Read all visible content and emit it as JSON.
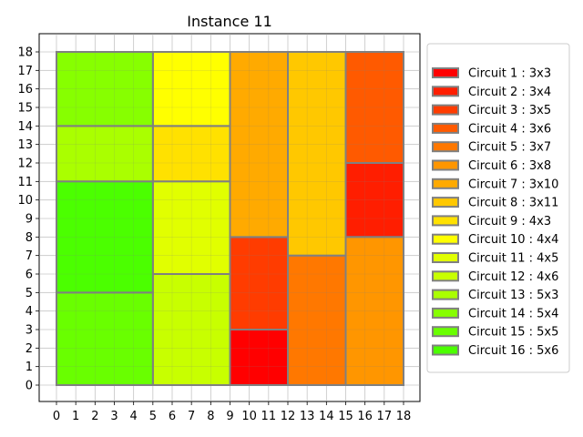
{
  "chart_data": {
    "type": "rectangle-packing",
    "title": "Instance 11",
    "xlim": [
      0,
      18
    ],
    "ylim": [
      0,
      18
    ],
    "grid": true,
    "legend_placement": "right",
    "x_ticks": [
      "0",
      "1",
      "2",
      "3",
      "4",
      "5",
      "6",
      "7",
      "8",
      "9",
      "10",
      "11",
      "12",
      "13",
      "14",
      "15",
      "16",
      "17",
      "18"
    ],
    "y_ticks": [
      "0",
      "1",
      "2",
      "3",
      "4",
      "5",
      "6",
      "7",
      "8",
      "9",
      "10",
      "11",
      "12",
      "13",
      "14",
      "15",
      "16",
      "17",
      "18"
    ],
    "edge_color": "#808080",
    "circuits": [
      {
        "label": "Circuit 1 : 3x3",
        "color": "#ff0000",
        "x": 9,
        "y": 0,
        "w": 3,
        "h": 3
      },
      {
        "label": "Circuit 2 : 3x4",
        "color": "#ff1e00",
        "x": 15,
        "y": 8,
        "w": 3,
        "h": 4
      },
      {
        "label": "Circuit 3 : 3x5",
        "color": "#ff3c00",
        "x": 9,
        "y": 3,
        "w": 3,
        "h": 5
      },
      {
        "label": "Circuit 4 : 3x6",
        "color": "#ff5a00",
        "x": 15,
        "y": 12,
        "w": 3,
        "h": 6
      },
      {
        "label": "Circuit 5 : 3x7",
        "color": "#ff7800",
        "x": 12,
        "y": 0,
        "w": 3,
        "h": 7
      },
      {
        "label": "Circuit 6 : 3x8",
        "color": "#ff9600",
        "x": 15,
        "y": 0,
        "w": 3,
        "h": 8
      },
      {
        "label": "Circuit 7 : 3x10",
        "color": "#ffaa00",
        "x": 9,
        "y": 8,
        "w": 3,
        "h": 10
      },
      {
        "label": "Circuit 8 : 3x11",
        "color": "#ffc800",
        "x": 12,
        "y": 7,
        "w": 3,
        "h": 11
      },
      {
        "label": "Circuit 9 : 4x3",
        "color": "#ffe100",
        "x": 5,
        "y": 11,
        "w": 4,
        "h": 3
      },
      {
        "label": "Circuit 10 : 4x4",
        "color": "#ffff00",
        "x": 5,
        "y": 14,
        "w": 4,
        "h": 4
      },
      {
        "label": "Circuit 11 : 4x5",
        "color": "#e1ff00",
        "x": 5,
        "y": 6,
        "w": 4,
        "h": 5
      },
      {
        "label": "Circuit 12 : 4x6",
        "color": "#c8ff00",
        "x": 5,
        "y": 0,
        "w": 4,
        "h": 6
      },
      {
        "label": "Circuit 13 : 5x3",
        "color": "#aaff00",
        "x": 0,
        "y": 11,
        "w": 5,
        "h": 3
      },
      {
        "label": "Circuit 14 : 5x4",
        "color": "#87ff00",
        "x": 0,
        "y": 14,
        "w": 5,
        "h": 4
      },
      {
        "label": "Circuit 15 : 5x5",
        "color": "#69ff00",
        "x": 0,
        "y": 0,
        "w": 5,
        "h": 5
      },
      {
        "label": "Circuit 16 : 5x6",
        "color": "#4bff00",
        "x": 0,
        "y": 5,
        "w": 5,
        "h": 6
      }
    ]
  }
}
